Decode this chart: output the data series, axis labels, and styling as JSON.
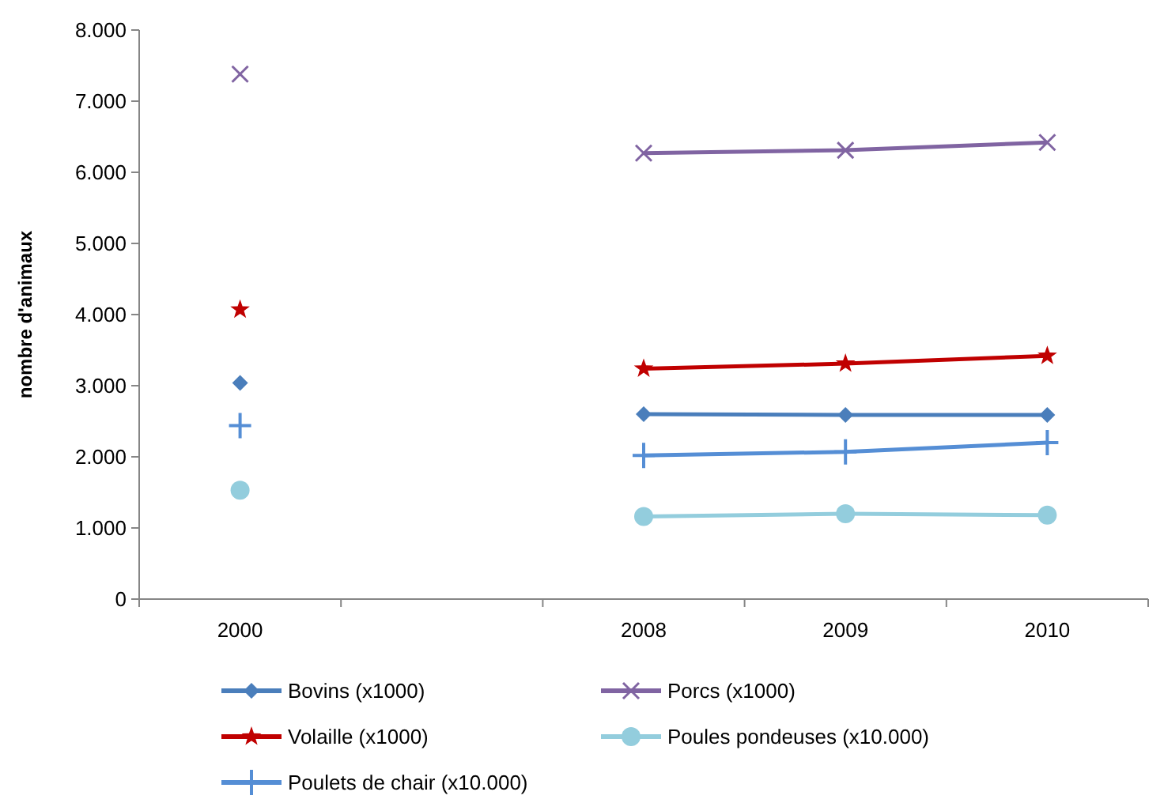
{
  "chart_data": {
    "type": "line",
    "ylabel": "nombre d'animaux",
    "categories": [
      "2000",
      null,
      "2008",
      "2009",
      "2010"
    ],
    "ylim": [
      0,
      8000
    ],
    "yticks": [
      {
        "value": 0,
        "label": "0"
      },
      {
        "value": 1000,
        "label": "1.000"
      },
      {
        "value": 2000,
        "label": "2.000"
      },
      {
        "value": 3000,
        "label": "3.000"
      },
      {
        "value": 4000,
        "label": "4.000"
      },
      {
        "value": 5000,
        "label": "5.000"
      },
      {
        "value": 6000,
        "label": "6.000"
      },
      {
        "value": 7000,
        "label": "7.000"
      },
      {
        "value": 8000,
        "label": "8.000"
      }
    ],
    "grid": false,
    "legend": "bottom",
    "series": [
      {
        "name": "Bovins (x1000)",
        "color": "#4a7ebb",
        "marker": "diamond",
        "values": [
          3040,
          null,
          2600,
          2590,
          2590
        ]
      },
      {
        "name": "Porcs (x1000)",
        "color": "#8064a2",
        "marker": "cross",
        "values": [
          7380,
          null,
          6270,
          6310,
          6420
        ]
      },
      {
        "name": "Volaille (x1000)",
        "color": "#c00000",
        "marker": "star",
        "values": [
          4070,
          null,
          3240,
          3310,
          3420
        ]
      },
      {
        "name": "Poules pondeuses (x10.000)",
        "color": "#93cddd",
        "marker": "circle",
        "values": [
          1530,
          null,
          1160,
          1200,
          1180
        ]
      },
      {
        "name": "Poulets de chair (x10.000)",
        "color": "#558ed5",
        "marker": "plus",
        "values": [
          2440,
          null,
          2020,
          2070,
          2200
        ]
      }
    ]
  }
}
